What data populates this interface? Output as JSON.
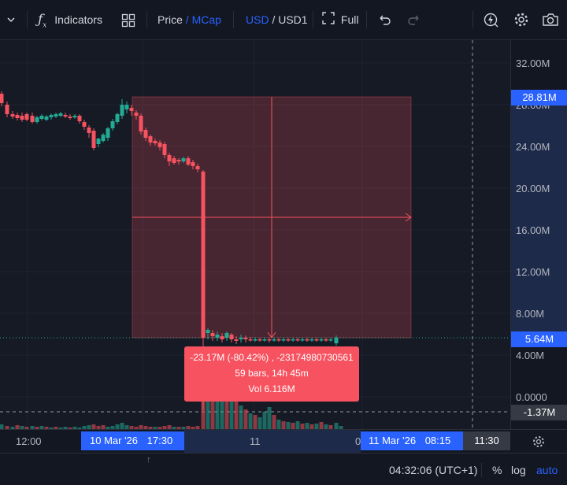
{
  "toolbar": {
    "indicators_label": "Indicators",
    "price_label": "Price",
    "price_sep": "/",
    "mcap_label": "MCap",
    "usd_label": "USD",
    "currency_sep": "/",
    "usd1_label": "USD1",
    "full_label": "Full"
  },
  "price_scale": {
    "labels": [
      "32.00M",
      "28.00M",
      "24.00M",
      "20.00M",
      "16.00M",
      "12.00M",
      "8.00M",
      "4.00M",
      "0.0000"
    ],
    "upper_badge": "28.81M",
    "current_badge": "5.64M",
    "cursor_badge": "-1.37M"
  },
  "time_axis": {
    "label_1200": "12:00",
    "range_start_date": "10 Mar '26",
    "range_start_time": "17:30",
    "label_11": "11",
    "range_end_date": "11 Mar '26",
    "range_end_time": "08:15",
    "cursor_time": "11:30",
    "partial_label": "0"
  },
  "measure": {
    "line1": "-23.17M (-80.42%) , -23174980730561",
    "line2": "59 bars, 14h 45m",
    "line3": "Vol 6.116M"
  },
  "bottom": {
    "clock": "04:32:06 (UTC+1)",
    "percent_label": "%",
    "log_label": "log",
    "auto_label": "auto"
  },
  "colors": {
    "background": "#131722",
    "up": "#22ab94",
    "down": "#f7525f",
    "accent": "#2962ff",
    "measure_fill": "#f7525f"
  },
  "icons": [
    "chevron-down-icon",
    "fx-icon",
    "layout-grid-icon",
    "fullscreen-icon",
    "undo-icon",
    "redo-icon",
    "bolt-icon",
    "gear-icon",
    "camera-icon",
    "settings-icon"
  ]
}
